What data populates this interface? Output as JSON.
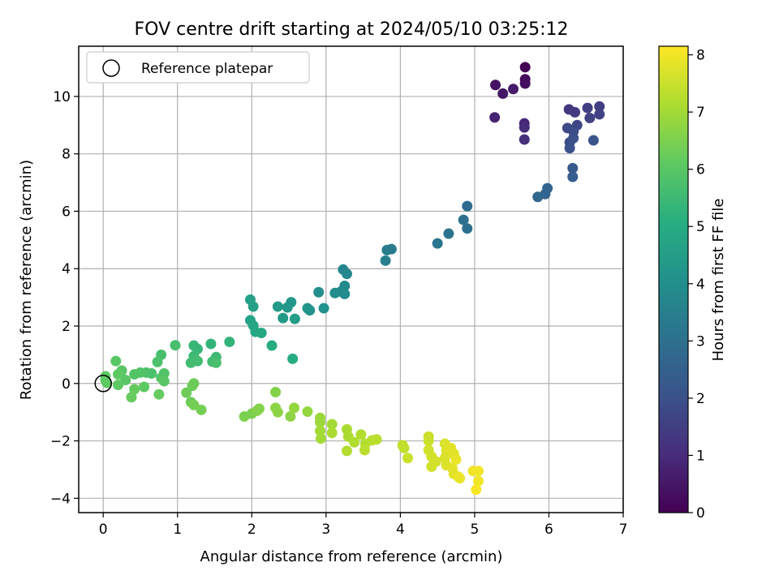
{
  "chart_data": {
    "type": "scatter",
    "title": "FOV centre drift starting at 2024/05/10 03:25:12",
    "xlabel": "Angular distance from reference (arcmin)",
    "ylabel": "Rotation from reference (arcmin)",
    "xlim": [
      -0.33,
      7.0
    ],
    "ylim": [
      -4.5,
      11.75
    ],
    "xticks": [
      0,
      1,
      2,
      3,
      4,
      5,
      6,
      7
    ],
    "yticks": [
      -4,
      -2,
      0,
      2,
      4,
      6,
      8,
      10
    ],
    "grid": true,
    "legend": {
      "position": "upper-left",
      "entries": [
        "Reference platepar"
      ]
    },
    "reference_point": {
      "x": 0,
      "y": 0,
      "marker": "open-circle"
    },
    "colorbar": {
      "label": "Hours from first FF file",
      "range": [
        0,
        8.15
      ],
      "ticks": [
        0,
        1,
        2,
        3,
        4,
        5,
        6,
        7,
        8
      ],
      "colormap": "viridis"
    },
    "points": [
      {
        "x": 5.68,
        "y": 11.02,
        "c": 0.0
      },
      {
        "x": 5.68,
        "y": 10.6,
        "c": 0.2
      },
      {
        "x": 5.68,
        "y": 10.45,
        "c": 0.3
      },
      {
        "x": 5.28,
        "y": 10.4,
        "c": 0.4
      },
      {
        "x": 5.38,
        "y": 10.1,
        "c": 0.5
      },
      {
        "x": 5.52,
        "y": 10.26,
        "c": 0.6
      },
      {
        "x": 5.27,
        "y": 9.27,
        "c": 0.8
      },
      {
        "x": 5.67,
        "y": 9.06,
        "c": 0.9
      },
      {
        "x": 5.67,
        "y": 8.92,
        "c": 1.0
      },
      {
        "x": 5.67,
        "y": 8.5,
        "c": 1.1
      },
      {
        "x": 6.27,
        "y": 9.55,
        "c": 1.3
      },
      {
        "x": 6.35,
        "y": 9.45,
        "c": 1.4
      },
      {
        "x": 6.52,
        "y": 9.6,
        "c": 1.5
      },
      {
        "x": 6.68,
        "y": 9.65,
        "c": 1.5
      },
      {
        "x": 6.68,
        "y": 9.38,
        "c": 1.6
      },
      {
        "x": 6.55,
        "y": 9.25,
        "c": 1.6
      },
      {
        "x": 6.38,
        "y": 9.0,
        "c": 1.7
      },
      {
        "x": 6.25,
        "y": 8.9,
        "c": 1.8
      },
      {
        "x": 6.33,
        "y": 8.78,
        "c": 1.9
      },
      {
        "x": 6.28,
        "y": 8.4,
        "c": 1.9
      },
      {
        "x": 6.28,
        "y": 8.2,
        "c": 2.0
      },
      {
        "x": 6.33,
        "y": 8.55,
        "c": 2.0
      },
      {
        "x": 6.6,
        "y": 8.47,
        "c": 2.1
      },
      {
        "x": 6.32,
        "y": 7.5,
        "c": 2.3
      },
      {
        "x": 6.32,
        "y": 7.2,
        "c": 2.4
      },
      {
        "x": 5.98,
        "y": 6.8,
        "c": 2.6
      },
      {
        "x": 5.95,
        "y": 6.6,
        "c": 2.6
      },
      {
        "x": 5.85,
        "y": 6.5,
        "c": 2.7
      },
      {
        "x": 4.9,
        "y": 6.18,
        "c": 2.9
      },
      {
        "x": 4.85,
        "y": 5.7,
        "c": 3.0
      },
      {
        "x": 4.9,
        "y": 5.4,
        "c": 3.0
      },
      {
        "x": 4.65,
        "y": 5.22,
        "c": 3.1
      },
      {
        "x": 4.5,
        "y": 4.88,
        "c": 3.2
      },
      {
        "x": 3.82,
        "y": 4.65,
        "c": 3.4
      },
      {
        "x": 3.88,
        "y": 4.68,
        "c": 3.4
      },
      {
        "x": 3.8,
        "y": 4.28,
        "c": 3.5
      },
      {
        "x": 3.23,
        "y": 3.97,
        "c": 3.7
      },
      {
        "x": 3.28,
        "y": 3.82,
        "c": 3.7
      },
      {
        "x": 3.25,
        "y": 3.4,
        "c": 3.8
      },
      {
        "x": 3.2,
        "y": 3.2,
        "c": 3.8
      },
      {
        "x": 3.12,
        "y": 3.15,
        "c": 3.9
      },
      {
        "x": 3.25,
        "y": 3.12,
        "c": 3.9
      },
      {
        "x": 2.9,
        "y": 3.18,
        "c": 4.0
      },
      {
        "x": 2.97,
        "y": 2.62,
        "c": 4.1
      },
      {
        "x": 2.78,
        "y": 2.55,
        "c": 4.1
      },
      {
        "x": 2.75,
        "y": 2.62,
        "c": 4.2
      },
      {
        "x": 2.53,
        "y": 2.83,
        "c": 4.3
      },
      {
        "x": 2.48,
        "y": 2.65,
        "c": 4.3
      },
      {
        "x": 2.35,
        "y": 2.68,
        "c": 4.4
      },
      {
        "x": 2.42,
        "y": 2.28,
        "c": 4.4
      },
      {
        "x": 2.58,
        "y": 2.25,
        "c": 4.5
      },
      {
        "x": 1.98,
        "y": 2.92,
        "c": 4.6
      },
      {
        "x": 2.02,
        "y": 2.68,
        "c": 4.6
      },
      {
        "x": 1.98,
        "y": 2.2,
        "c": 4.7
      },
      {
        "x": 2.02,
        "y": 2.02,
        "c": 4.8
      },
      {
        "x": 2.05,
        "y": 1.8,
        "c": 4.8
      },
      {
        "x": 2.13,
        "y": 1.76,
        "c": 4.9
      },
      {
        "x": 2.27,
        "y": 1.32,
        "c": 5.0
      },
      {
        "x": 2.55,
        "y": 0.86,
        "c": 5.0
      },
      {
        "x": 1.7,
        "y": 1.45,
        "c": 5.3
      },
      {
        "x": 1.45,
        "y": 1.38,
        "c": 5.3
      },
      {
        "x": 1.22,
        "y": 1.32,
        "c": 5.4
      },
      {
        "x": 1.27,
        "y": 1.2,
        "c": 5.4
      },
      {
        "x": 1.52,
        "y": 0.92,
        "c": 5.5
      },
      {
        "x": 1.22,
        "y": 0.95,
        "c": 5.5
      },
      {
        "x": 1.18,
        "y": 0.72,
        "c": 5.6
      },
      {
        "x": 1.27,
        "y": 0.78,
        "c": 5.6
      },
      {
        "x": 1.47,
        "y": 0.76,
        "c": 5.6
      },
      {
        "x": 1.52,
        "y": 0.72,
        "c": 5.7
      },
      {
        "x": 0.97,
        "y": 1.33,
        "c": 5.7
      },
      {
        "x": 0.78,
        "y": 1.0,
        "c": 5.7
      },
      {
        "x": 0.73,
        "y": 0.75,
        "c": 5.8
      },
      {
        "x": 0.65,
        "y": 0.35,
        "c": 5.8
      },
      {
        "x": 0.58,
        "y": 0.38,
        "c": 5.8
      },
      {
        "x": 0.5,
        "y": 0.38,
        "c": 5.9
      },
      {
        "x": 0.42,
        "y": 0.32,
        "c": 5.9
      },
      {
        "x": 0.82,
        "y": 0.35,
        "c": 5.9
      },
      {
        "x": 0.78,
        "y": 0.2,
        "c": 5.9
      },
      {
        "x": 0.82,
        "y": 0.08,
        "c": 6.0
      },
      {
        "x": 0.3,
        "y": 0.12,
        "c": 6.0
      },
      {
        "x": 0.25,
        "y": 0.45,
        "c": 6.0
      },
      {
        "x": 0.17,
        "y": 0.78,
        "c": 6.0
      },
      {
        "x": 0.2,
        "y": 0.32,
        "c": 6.1
      },
      {
        "x": 0.03,
        "y": 0.25,
        "c": 6.1
      },
      {
        "x": 0.03,
        "y": 0.12,
        "c": 6.1
      },
      {
        "x": 0.05,
        "y": 0.02,
        "c": 6.1
      },
      {
        "x": 0.2,
        "y": -0.05,
        "c": 6.1
      },
      {
        "x": 0.55,
        "y": -0.12,
        "c": 6.1
      },
      {
        "x": 0.42,
        "y": -0.2,
        "c": 6.2
      },
      {
        "x": 0.38,
        "y": -0.48,
        "c": 6.2
      },
      {
        "x": 0.75,
        "y": -0.38,
        "c": 6.2
      },
      {
        "x": 1.22,
        "y": 0.0,
        "c": 6.3
      },
      {
        "x": 1.2,
        "y": -0.08,
        "c": 6.3
      },
      {
        "x": 1.12,
        "y": -0.32,
        "c": 6.3
      },
      {
        "x": 1.18,
        "y": -0.65,
        "c": 6.3
      },
      {
        "x": 1.22,
        "y": -0.75,
        "c": 6.4
      },
      {
        "x": 1.32,
        "y": -0.92,
        "c": 6.4
      },
      {
        "x": 1.9,
        "y": -1.15,
        "c": 6.5
      },
      {
        "x": 2.0,
        "y": -1.05,
        "c": 6.5
      },
      {
        "x": 2.07,
        "y": -0.95,
        "c": 6.6
      },
      {
        "x": 2.1,
        "y": -0.88,
        "c": 6.6
      },
      {
        "x": 2.32,
        "y": -0.3,
        "c": 6.6
      },
      {
        "x": 2.32,
        "y": -0.85,
        "c": 6.7
      },
      {
        "x": 2.35,
        "y": -1.0,
        "c": 6.7
      },
      {
        "x": 2.52,
        "y": -1.15,
        "c": 6.7
      },
      {
        "x": 2.57,
        "y": -0.85,
        "c": 6.8
      },
      {
        "x": 2.75,
        "y": -0.98,
        "c": 6.8
      },
      {
        "x": 2.92,
        "y": -1.2,
        "c": 6.9
      },
      {
        "x": 2.92,
        "y": -1.35,
        "c": 6.9
      },
      {
        "x": 2.92,
        "y": -1.65,
        "c": 7.0
      },
      {
        "x": 2.93,
        "y": -1.92,
        "c": 7.0
      },
      {
        "x": 3.08,
        "y": -1.42,
        "c": 7.0
      },
      {
        "x": 3.08,
        "y": -1.72,
        "c": 7.1
      },
      {
        "x": 3.28,
        "y": -1.6,
        "c": 7.1
      },
      {
        "x": 3.3,
        "y": -1.85,
        "c": 7.1
      },
      {
        "x": 3.28,
        "y": -2.35,
        "c": 7.2
      },
      {
        "x": 3.38,
        "y": -2.05,
        "c": 7.2
      },
      {
        "x": 3.47,
        "y": -1.78,
        "c": 7.2
      },
      {
        "x": 3.53,
        "y": -2.1,
        "c": 7.2
      },
      {
        "x": 3.52,
        "y": -2.32,
        "c": 7.3
      },
      {
        "x": 3.62,
        "y": -1.98,
        "c": 7.3
      },
      {
        "x": 3.68,
        "y": -1.95,
        "c": 7.3
      },
      {
        "x": 4.03,
        "y": -2.15,
        "c": 7.4
      },
      {
        "x": 4.05,
        "y": -2.25,
        "c": 7.4
      },
      {
        "x": 4.1,
        "y": -2.6,
        "c": 7.5
      },
      {
        "x": 4.38,
        "y": -1.85,
        "c": 7.5
      },
      {
        "x": 4.38,
        "y": -2.0,
        "c": 7.5
      },
      {
        "x": 4.38,
        "y": -2.32,
        "c": 7.6
      },
      {
        "x": 4.42,
        "y": -2.55,
        "c": 7.6
      },
      {
        "x": 4.42,
        "y": -2.9,
        "c": 7.6
      },
      {
        "x": 4.48,
        "y": -2.72,
        "c": 7.6
      },
      {
        "x": 4.6,
        "y": -2.1,
        "c": 7.7
      },
      {
        "x": 4.62,
        "y": -2.35,
        "c": 7.7
      },
      {
        "x": 4.6,
        "y": -2.6,
        "c": 7.7
      },
      {
        "x": 4.62,
        "y": -2.85,
        "c": 7.7
      },
      {
        "x": 4.68,
        "y": -2.25,
        "c": 7.8
      },
      {
        "x": 4.72,
        "y": -2.45,
        "c": 7.8
      },
      {
        "x": 4.7,
        "y": -2.95,
        "c": 7.8
      },
      {
        "x": 4.72,
        "y": -3.15,
        "c": 7.8
      },
      {
        "x": 4.75,
        "y": -2.65,
        "c": 7.9
      },
      {
        "x": 4.8,
        "y": -3.3,
        "c": 7.9
      },
      {
        "x": 4.78,
        "y": -3.25,
        "c": 7.9
      },
      {
        "x": 4.98,
        "y": -3.05,
        "c": 8.0
      },
      {
        "x": 5.05,
        "y": -3.05,
        "c": 8.0
      },
      {
        "x": 5.05,
        "y": -3.4,
        "c": 8.0
      },
      {
        "x": 5.02,
        "y": -3.7,
        "c": 8.1
      }
    ]
  }
}
